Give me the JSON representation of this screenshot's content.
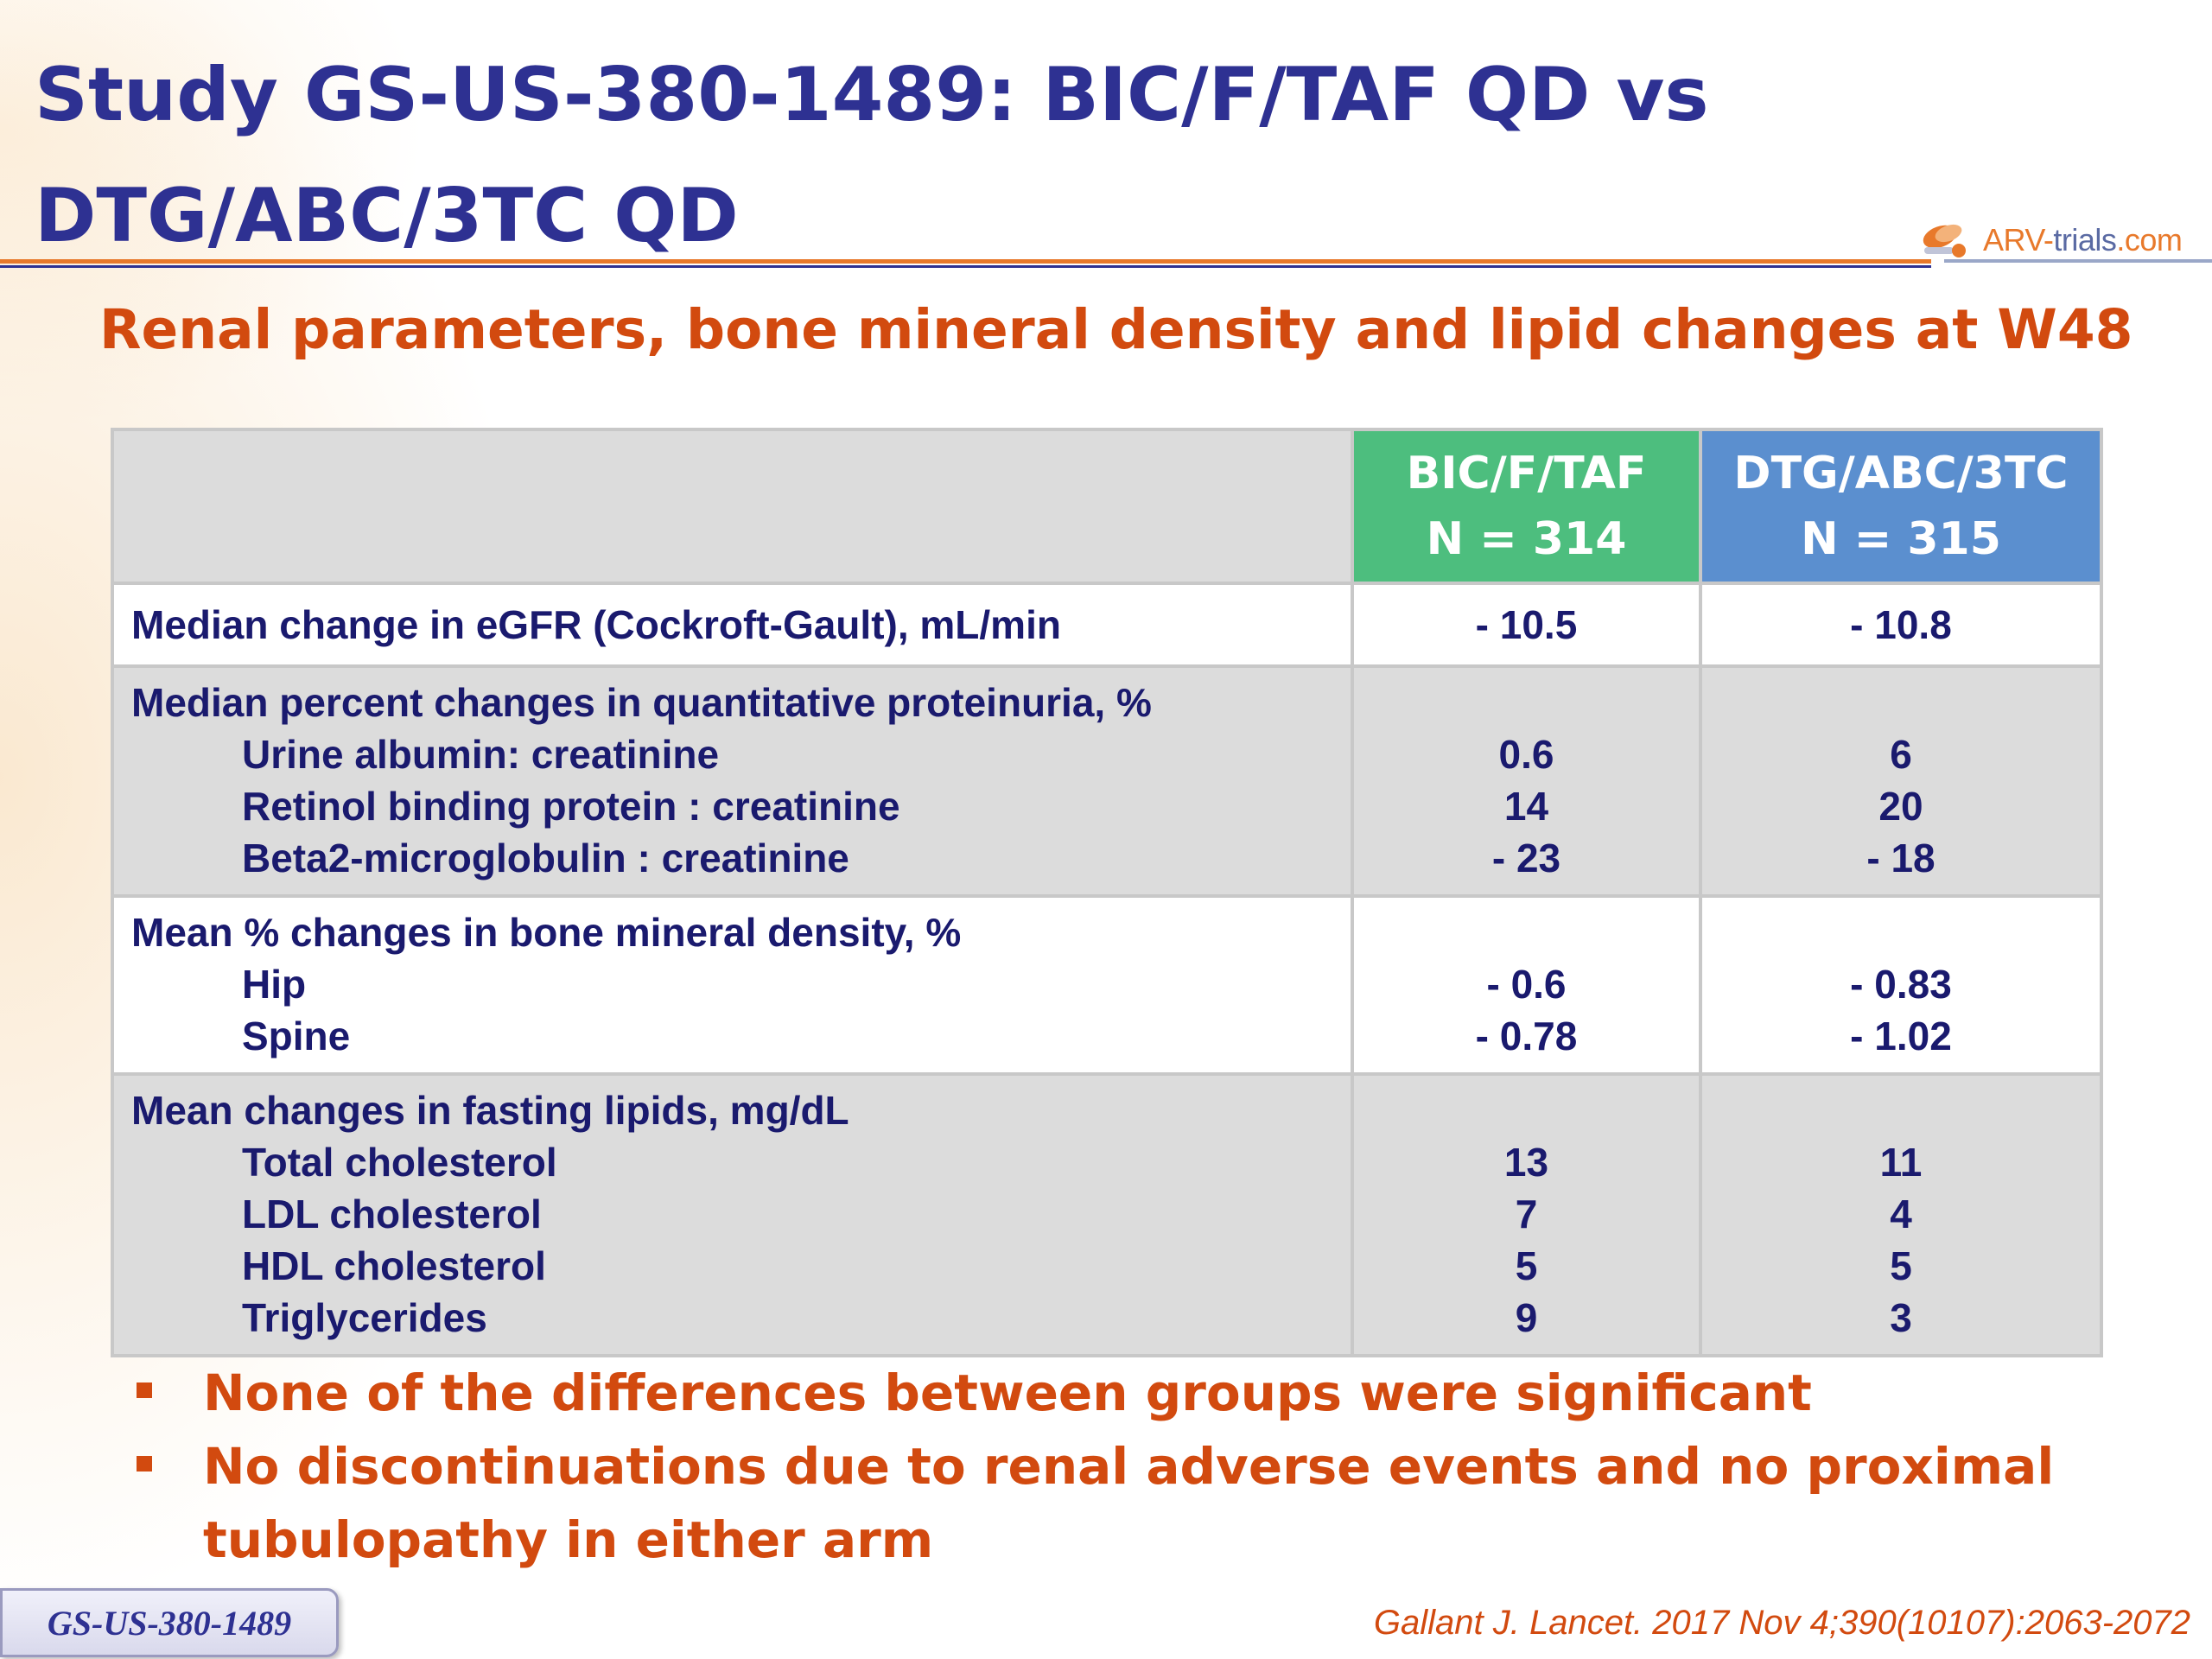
{
  "title_line1": "Study GS-US-380-1489: BIC/F/TAF QD vs",
  "title_line2": "DTG/ABC/3TC QD",
  "logo": {
    "prefix": "ARV-",
    "mid": "trials",
    "suffix": ".com",
    "icon": "pill-icon"
  },
  "subtitle": "Renal parameters, bone mineral density and lipid changes at W48",
  "table": {
    "col1": {
      "name": "BIC/F/TAF",
      "n": "N = 314",
      "color": "#4dbe7e"
    },
    "col2": {
      "name": "DTG/ABC/3TC",
      "n": "N = 315",
      "color": "#5b8fcf"
    },
    "sections": [
      {
        "heading": "Median change in eGFR (Cockroft-Gault), mL/min",
        "heading_values": [
          "- 10.5",
          "- 10.8"
        ],
        "rows": []
      },
      {
        "heading": "Median percent changes in quantitative proteinuria, %",
        "rows": [
          {
            "label": "Urine albumin: creatinine",
            "v1": "0.6",
            "v2": "6"
          },
          {
            "label": "Retinol binding protein : creatinine",
            "v1": "14",
            "v2": "20"
          },
          {
            "label": "Beta2-microglobulin : creatinine",
            "v1": "- 23",
            "v2": "- 18"
          }
        ]
      },
      {
        "heading": "Mean % changes in bone mineral density, %",
        "rows": [
          {
            "label": "Hip",
            "v1": "- 0.6",
            "v2": "- 0.83"
          },
          {
            "label": "Spine",
            "v1": "- 0.78",
            "v2": "- 1.02"
          }
        ]
      },
      {
        "heading": "Mean changes in fasting lipids, mg/dL",
        "rows": [
          {
            "label": "Total cholesterol",
            "v1": "13",
            "v2": "11"
          },
          {
            "label": "LDL cholesterol",
            "v1": "7",
            "v2": "4"
          },
          {
            "label": "HDL cholesterol",
            "v1": "5",
            "v2": "5"
          },
          {
            "label": "Triglycerides",
            "v1": "9",
            "v2": "3"
          }
        ]
      }
    ]
  },
  "bullets": [
    "None of the differences between groups were significant",
    "No discontinuations due to renal adverse events and no proximal tubulopathy in either arm"
  ],
  "badge": "GS-US-380-1489",
  "citation": "Gallant J. Lancet. 2017 Nov 4;390(10107):2063-2072"
}
